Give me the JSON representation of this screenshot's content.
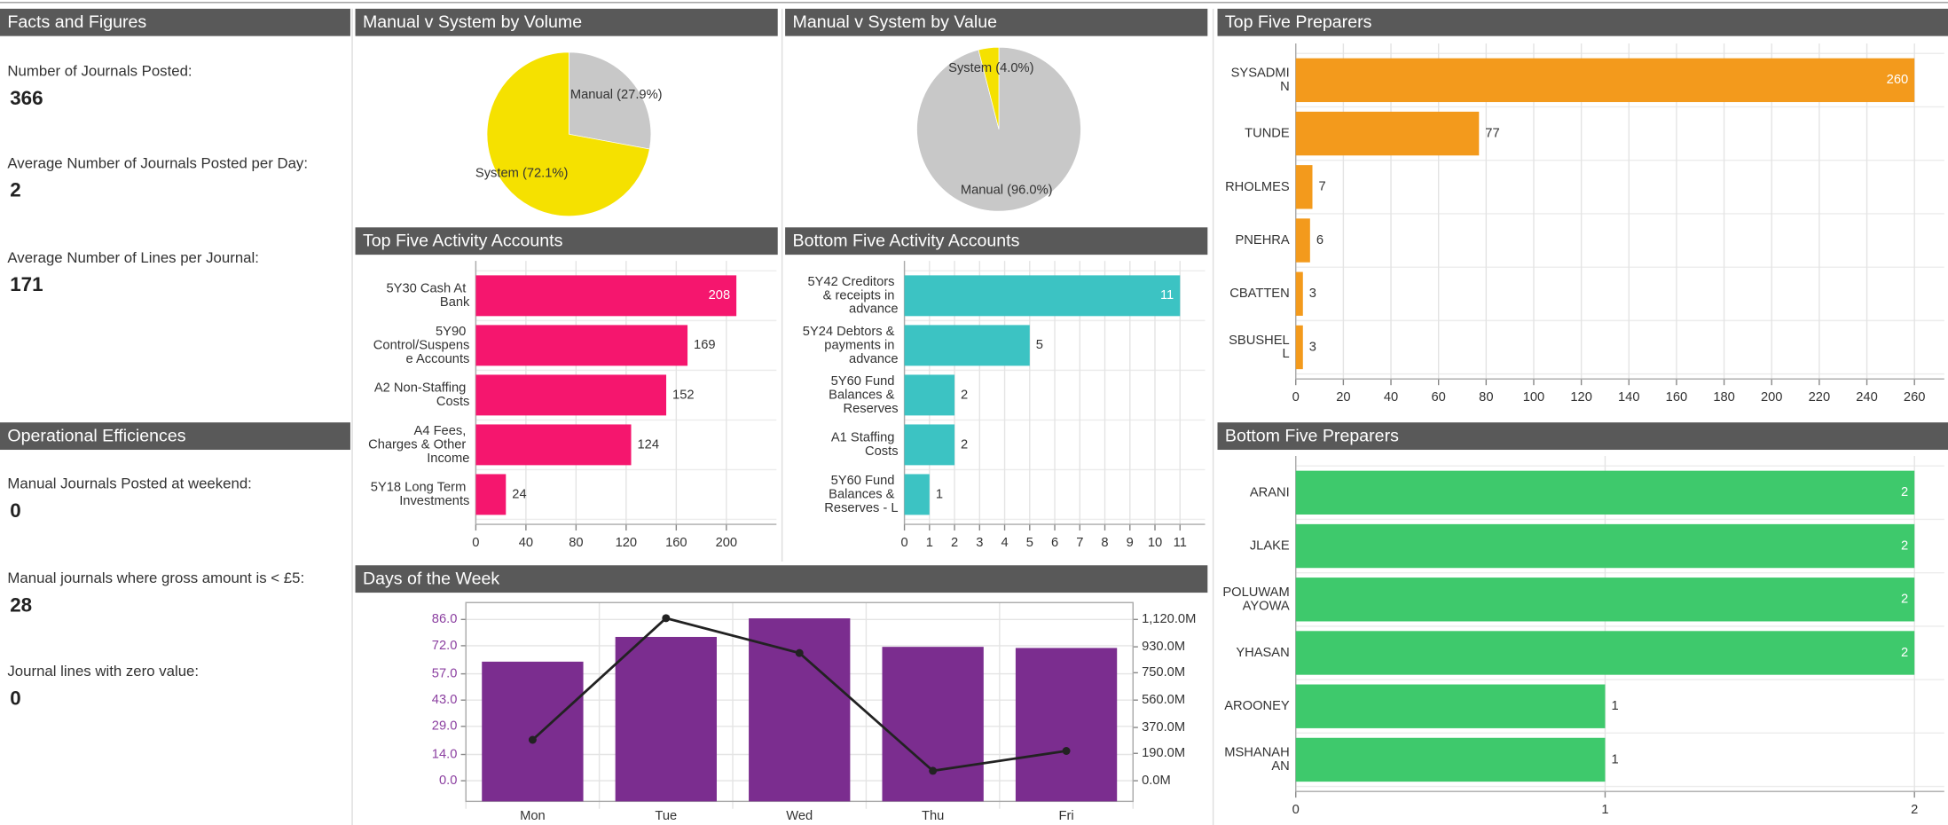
{
  "facts": {
    "title": "Facts and Figures",
    "items": [
      {
        "label": "Number of Journals Posted:",
        "value": 366
      },
      {
        "label": "Average Number of Journals Posted per Day:",
        "value": 2
      },
      {
        "label": "Average Number of Lines per Journal:",
        "value": 171
      }
    ]
  },
  "efficiencies": {
    "title": "Operational Efficiences",
    "items": [
      {
        "label": "Manual Journals Posted at weekend:",
        "value": 0
      },
      {
        "label": "Manual journals where gross amount is < £5:",
        "value": 28
      },
      {
        "label": "Journal lines with zero value:",
        "value": 0
      }
    ]
  },
  "chart_data": [
    {
      "type": "pie",
      "title": "Manual v System by Volume",
      "values": [
        27.9,
        72.1
      ],
      "value_labels": [
        "Manual (27.9%)",
        "System (72.1%)"
      ],
      "colors": [
        "#c8c8c8",
        "#f5e100"
      ]
    },
    {
      "type": "pie",
      "title": "Manual v System by Value",
      "values": [
        96.0,
        4.0
      ],
      "value_labels": [
        "Manual (96.0%)",
        "System (4.0%)"
      ],
      "colors": [
        "#c8c8c8",
        "#f5e100"
      ]
    },
    {
      "type": "hbar",
      "title": "Top Five Activity Accounts",
      "categories": [
        "5Y30 Cash At Bank",
        "5Y90 Control/Suspense Accounts",
        "A2 Non-Staffing Costs",
        "A4 Fees, Charges & Other Income",
        "5Y18 Long Term Investments"
      ],
      "values": [
        208,
        169,
        152,
        124,
        24
      ],
      "color": "#f5166e",
      "xlim": [
        0,
        240
      ],
      "xticks": [
        0,
        40,
        80,
        120,
        160,
        200
      ],
      "grid": true
    },
    {
      "type": "hbar",
      "title": "Bottom Five Activity Accounts",
      "categories": [
        "5Y42 Creditors & receipts in advance",
        "5Y24 Debtors & payments in advance",
        "5Y60 Fund Balances & Reserves",
        "A1 Staffing Costs",
        "5Y60 Fund Balances & Reserves - L"
      ],
      "values": [
        11,
        5,
        2,
        2,
        1
      ],
      "color": "#3cc3c3",
      "xlim": [
        0,
        12
      ],
      "xticks": [
        0,
        1,
        2,
        3,
        4,
        5,
        6,
        7,
        8,
        9,
        10,
        11
      ],
      "grid": true
    },
    {
      "type": "hbar",
      "title": "Top Five Preparers",
      "categories": [
        "SYSADMIN",
        "TUNDE",
        "RHOLMES",
        "PNEHRA",
        "CBATTEN",
        "SBUSHELL"
      ],
      "values": [
        260,
        77,
        7,
        6,
        3,
        3
      ],
      "color": "#f39a1c",
      "xlim": [
        0,
        260
      ],
      "xticks": [
        0,
        20,
        40,
        60,
        80,
        100,
        120,
        140,
        160,
        180,
        200,
        220,
        240,
        260
      ],
      "grid": true
    },
    {
      "type": "hbar",
      "title": "Bottom Five Preparers",
      "categories": [
        "ARANI",
        "JLAKE",
        "POLUWAMAYOWA",
        "YHASAN",
        "AROONEY",
        "MSHANAHAN"
      ],
      "values": [
        2,
        2,
        2,
        2,
        1,
        1
      ],
      "color": "#3ec96c",
      "xlim": [
        0,
        2
      ],
      "xticks": [
        0,
        1,
        2
      ],
      "grid": true
    },
    {
      "type": "combo",
      "title": "Days of the Week",
      "categories": [
        "Mon",
        "Tue",
        "Wed",
        "Thu",
        "Fri"
      ],
      "series": [
        {
          "type": "bar",
          "color": "#7b2d8f",
          "values": [
            63.5,
            76.7,
            86.6,
            71.4,
            70.8
          ]
        },
        {
          "type": "line",
          "color": "#222222",
          "axis": "y2",
          "values": [
            284000000,
            1129000000,
            887000000,
            69000000,
            207000000
          ]
        }
      ],
      "ylim": [
        -11,
        95
      ],
      "yticks": [
        {
          "value": 0,
          "label": "0.0"
        },
        {
          "value": 14,
          "label": "14.0"
        },
        {
          "value": 29,
          "label": "29.0"
        },
        {
          "value": 43,
          "label": "43.0"
        },
        {
          "value": 57,
          "label": "57.0"
        },
        {
          "value": 72,
          "label": "72.0"
        },
        {
          "value": 86,
          "label": "86.0"
        }
      ],
      "y2lim": [
        -143300000,
        1237200000
      ],
      "y2ticks": [
        {
          "value": 0,
          "label": "0.0M"
        },
        {
          "value": 190000000,
          "label": "190.0M"
        },
        {
          "value": 370000000,
          "label": "370.0M"
        },
        {
          "value": 560000000,
          "label": "560.0M"
        },
        {
          "value": 750000000,
          "label": "750.0M"
        },
        {
          "value": 930000000,
          "label": "930.0M"
        },
        {
          "value": 1120000000,
          "label": "1,120.0M"
        }
      ],
      "grid": true
    }
  ]
}
